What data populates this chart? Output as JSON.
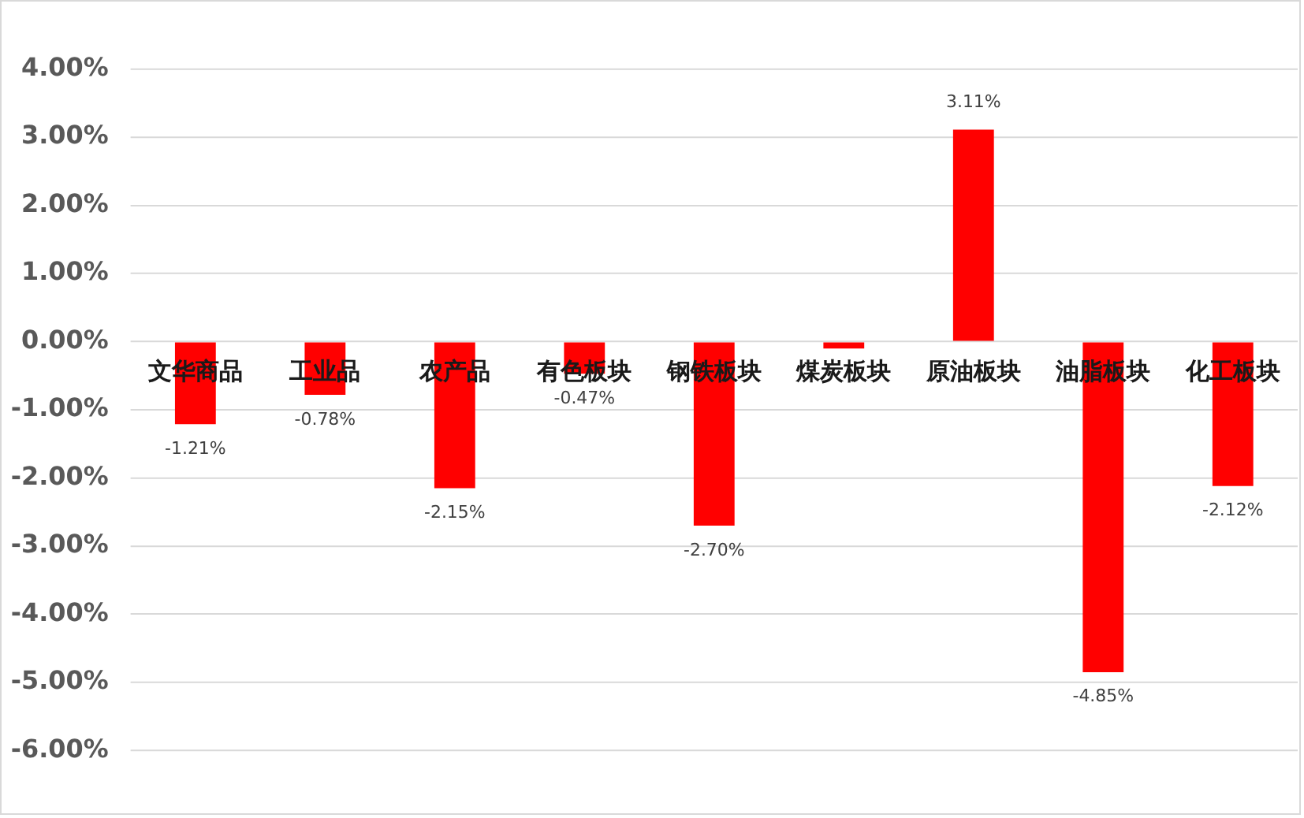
{
  "chart_data": {
    "type": "bar",
    "categories": [
      "文华商品",
      "工业品",
      "农产品",
      "有色板块",
      "钢铁板块",
      "煤炭板块",
      "原油板块",
      "油脂板块",
      "化工板块"
    ],
    "values": [
      -1.21,
      -0.78,
      -2.15,
      -0.47,
      -2.7,
      -0.1,
      3.11,
      -4.85,
      -2.12
    ],
    "value_labels": [
      "-1.21%",
      "-0.78%",
      "-2.15%",
      "-0.47%",
      "-2.70%",
      null,
      "3.11%",
      "-4.85%",
      "-2.12%"
    ],
    "color": "#ff0000",
    "ylim": [
      -6,
      4
    ],
    "yticks": [
      {
        "value": 4,
        "label": "4.00%"
      },
      {
        "value": 3,
        "label": "3.00%"
      },
      {
        "value": 2,
        "label": "2.00%"
      },
      {
        "value": 1,
        "label": "1.00%"
      },
      {
        "value": 0,
        "label": "0.00%"
      },
      {
        "value": -1,
        "label": "-1.00%"
      },
      {
        "value": -2,
        "label": "-2.00%"
      },
      {
        "value": -3,
        "label": "-3.00%"
      },
      {
        "value": -4,
        "label": "-4.00%"
      },
      {
        "value": -5,
        "label": "-5.00%"
      },
      {
        "value": -6,
        "label": "-6.00%"
      }
    ],
    "grid": "y"
  }
}
